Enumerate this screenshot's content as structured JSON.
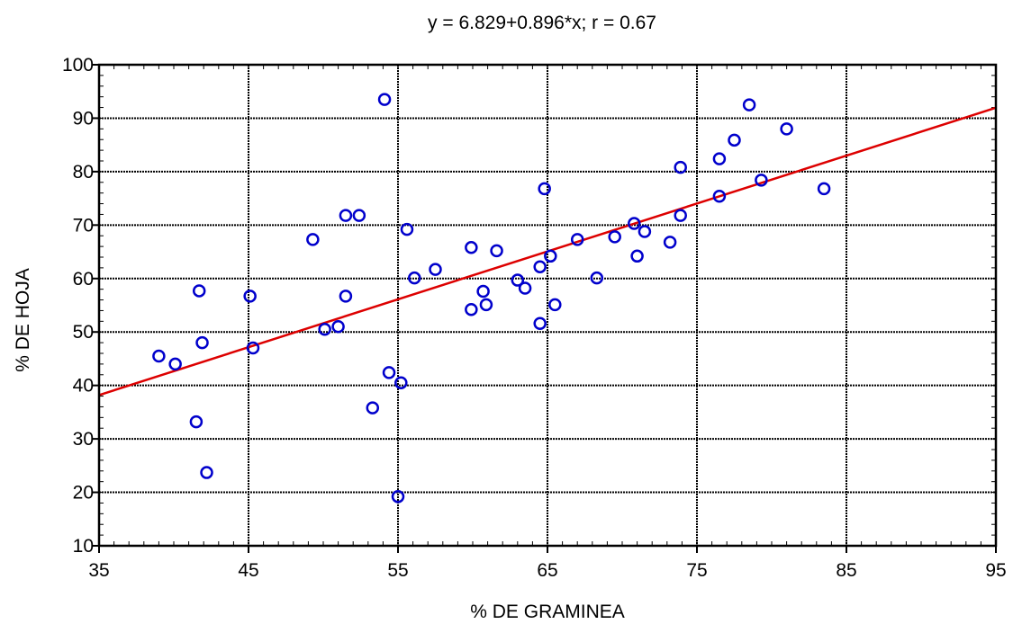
{
  "chart_data": {
    "type": "scatter",
    "title": "y = 6.829+0.896*x; r = 0.67",
    "xlabel": "% DE GRAMINEA",
    "ylabel": "% DE HOJA",
    "xlim": [
      35,
      95
    ],
    "ylim": [
      10,
      100
    ],
    "xticks": [
      35,
      45,
      55,
      65,
      75,
      85,
      95
    ],
    "yticks": [
      10,
      20,
      30,
      40,
      50,
      60,
      70,
      80,
      90,
      100
    ],
    "grid": true,
    "colors": {
      "points": "#0000cc",
      "fit": "#dd0000",
      "grid": "#000000"
    },
    "fit_line": {
      "intercept": 6.829,
      "slope": 0.896
    },
    "points": [
      [
        39.0,
        45.5
      ],
      [
        40.1,
        44.0
      ],
      [
        41.5,
        33.2
      ],
      [
        41.7,
        57.7
      ],
      [
        41.9,
        48.0
      ],
      [
        42.2,
        23.7
      ],
      [
        45.1,
        56.7
      ],
      [
        45.3,
        47.0
      ],
      [
        49.3,
        67.3
      ],
      [
        50.1,
        50.5
      ],
      [
        51.0,
        51.0
      ],
      [
        51.5,
        71.8
      ],
      [
        51.5,
        56.7
      ],
      [
        52.4,
        71.8
      ],
      [
        53.3,
        35.8
      ],
      [
        54.1,
        93.5
      ],
      [
        54.4,
        42.4
      ],
      [
        55.0,
        19.2
      ],
      [
        55.2,
        40.5
      ],
      [
        55.6,
        69.2
      ],
      [
        56.1,
        60.1
      ],
      [
        57.5,
        61.7
      ],
      [
        59.9,
        65.8
      ],
      [
        59.9,
        54.2
      ],
      [
        60.7,
        57.6
      ],
      [
        60.9,
        55.1
      ],
      [
        61.6,
        65.2
      ],
      [
        63.0,
        59.7
      ],
      [
        63.5,
        58.2
      ],
      [
        64.5,
        62.2
      ],
      [
        64.5,
        51.6
      ],
      [
        64.8,
        76.8
      ],
      [
        65.2,
        64.2
      ],
      [
        65.5,
        55.1
      ],
      [
        67.0,
        67.3
      ],
      [
        68.3,
        60.1
      ],
      [
        69.5,
        67.8
      ],
      [
        70.8,
        70.3
      ],
      [
        71.0,
        64.2
      ],
      [
        71.5,
        68.8
      ],
      [
        73.2,
        66.8
      ],
      [
        73.9,
        80.8
      ],
      [
        73.9,
        71.8
      ],
      [
        76.5,
        82.4
      ],
      [
        76.5,
        75.4
      ],
      [
        77.5,
        85.9
      ],
      [
        78.5,
        92.5
      ],
      [
        79.3,
        78.4
      ],
      [
        81.0,
        88.0
      ],
      [
        83.5,
        76.8
      ]
    ]
  }
}
